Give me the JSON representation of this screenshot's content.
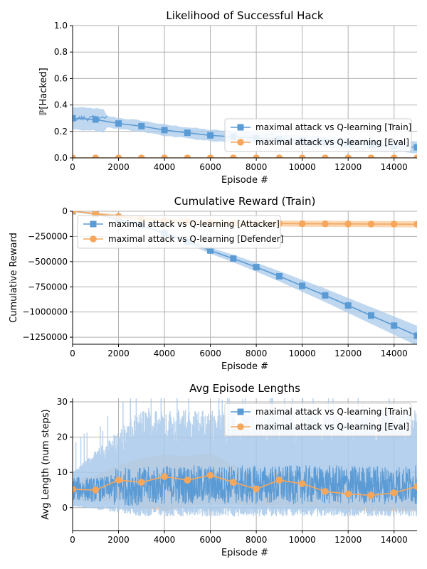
{
  "colors": {
    "blue": "#5b9bd5",
    "orange": "#f6a75c",
    "blue_band": "#a9c9ea",
    "orange_band": "#f8c99a"
  },
  "chart_data": [
    {
      "type": "line",
      "title": "Likelihood of Successful Hack",
      "xlabel": "Episode #",
      "ylabel": "ℙ[Hacked]",
      "xlim": [
        0,
        15000
      ],
      "ylim": [
        0,
        1.0
      ],
      "grid": true,
      "legend_placement": "right",
      "xticks": [
        0,
        2000,
        4000,
        6000,
        8000,
        10000,
        12000,
        14000
      ],
      "yticks": [
        0.0,
        0.2,
        0.4,
        0.6,
        0.8,
        1.0
      ],
      "ytick_labels": [
        "0.0",
        "0.2",
        "0.4",
        "0.6",
        "0.8",
        "1.0"
      ],
      "x": [
        0,
        1000,
        2000,
        3000,
        4000,
        5000,
        6000,
        7000,
        8000,
        9000,
        10000,
        11000,
        12000,
        13000,
        14000,
        15000
      ],
      "series": [
        {
          "name": "maximal attack vs Q-learning [Train]",
          "marker": "square",
          "color": "blue",
          "values": [
            0.3,
            0.29,
            0.26,
            0.24,
            0.21,
            0.19,
            0.17,
            0.16,
            0.15,
            0.14,
            0.13,
            0.12,
            0.11,
            0.1,
            0.09,
            0.08
          ],
          "band": 0.06
        },
        {
          "name": "maximal attack vs Q-learning [Eval]",
          "marker": "circle",
          "color": "orange",
          "values": [
            0,
            0,
            0,
            0,
            0,
            0,
            0,
            0,
            0,
            0,
            0,
            0,
            0,
            0,
            0,
            0
          ],
          "band": 0.0
        }
      ]
    },
    {
      "type": "line",
      "title": "Cumulative Reward (Train)",
      "xlabel": "Episode #",
      "ylabel": "Cumulative Reward",
      "xlim": [
        0,
        15000
      ],
      "ylim": [
        -1320000,
        0
      ],
      "grid": true,
      "legend_placement": "top-left",
      "xticks": [
        0,
        2000,
        4000,
        6000,
        8000,
        10000,
        12000,
        14000
      ],
      "yticks": [
        0,
        -250000,
        -500000,
        -750000,
        -1000000,
        -1250000
      ],
      "ytick_labels": [
        "0",
        "−250000",
        "−500000",
        "−750000",
        "−1000000",
        "−1250000"
      ],
      "x": [
        0,
        1000,
        2000,
        3000,
        4000,
        5000,
        6000,
        7000,
        8000,
        9000,
        10000,
        11000,
        12000,
        13000,
        14000,
        15000
      ],
      "series": [
        {
          "name": "maximal attack vs Q-learning [Attacker]",
          "marker": "square",
          "color": "blue",
          "values": [
            0,
            -30000,
            -80000,
            -140000,
            -220000,
            -300000,
            -390000,
            -470000,
            -555000,
            -645000,
            -740000,
            -835000,
            -935000,
            -1035000,
            -1135000,
            -1235000
          ],
          "band_frac": 0.08
        },
        {
          "name": "maximal attack vs Q-learning [Defender]",
          "marker": "circle",
          "color": "orange",
          "values": [
            0,
            -25000,
            -50000,
            -75000,
            -95000,
            -105000,
            -112000,
            -117000,
            -120000,
            -122000,
            -124000,
            -125000,
            -126000,
            -127000,
            -128000,
            -129000
          ],
          "band_frac": 0.18
        }
      ]
    },
    {
      "type": "line",
      "title": "Avg Episode Lengths",
      "xlabel": "Episode #",
      "ylabel": "Avg Length (num steps)",
      "xlim": [
        0,
        15000
      ],
      "ylim": [
        -6.5,
        31
      ],
      "grid": true,
      "legend_placement": "top-right",
      "xticks": [
        0,
        2000,
        4000,
        6000,
        8000,
        10000,
        12000,
        14000
      ],
      "yticks": [
        0,
        10,
        20,
        30
      ],
      "ytick_labels": [
        "0",
        "10",
        "20",
        "30"
      ],
      "x": [
        0,
        1000,
        2000,
        3000,
        4000,
        5000,
        6000,
        7000,
        8000,
        9000,
        10000,
        11000,
        12000,
        13000,
        14000,
        15000
      ],
      "series": [
        {
          "name": "maximal attack vs Q-learning [Train]",
          "marker": "square",
          "color": "blue",
          "values": [
            5.5,
            5.0,
            6.0,
            6.0,
            6.5,
            6.5,
            6.5,
            6.5,
            6.5,
            6.5,
            6.5,
            6.5,
            6.5,
            6.5,
            6.5,
            6.5
          ]
        },
        {
          "name": "maximal attack vs Q-learning [Eval]",
          "marker": "circle",
          "color": "orange",
          "values": [
            5.2,
            5.0,
            7.8,
            7.2,
            8.8,
            7.8,
            9.2,
            7.2,
            5.3,
            7.8,
            6.8,
            4.6,
            3.9,
            3.5,
            4.2,
            6.0
          ],
          "band_upper": [
            8,
            9,
            12,
            14,
            15,
            14.5,
            15.5,
            12,
            9,
            10.5,
            9.5,
            8,
            7,
            7,
            7.5,
            9
          ],
          "band_lower": [
            2,
            2,
            2,
            0,
            -1,
            0.5,
            1,
            1,
            0.5,
            0.5,
            0.5,
            0,
            -0.5,
            -1,
            -1,
            -1
          ]
        }
      ]
    }
  ]
}
